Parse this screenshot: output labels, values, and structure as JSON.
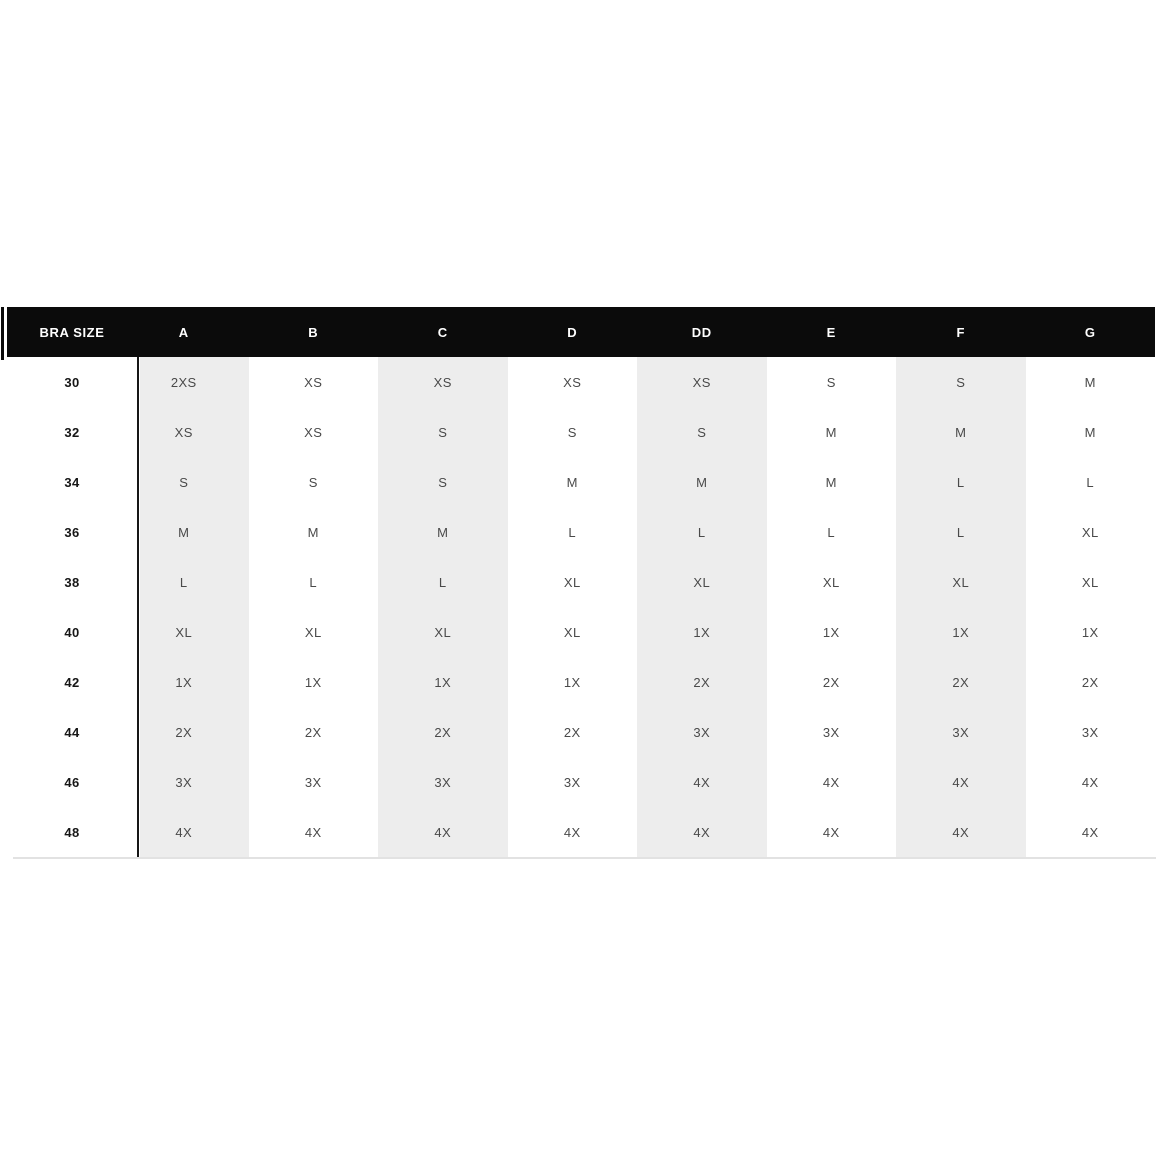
{
  "page": {
    "background": "#ffffff"
  },
  "chart_data": {
    "type": "table",
    "corner_label": "BRA SIZE",
    "columns": [
      "A",
      "B",
      "C",
      "D",
      "DD",
      "E",
      "F",
      "G"
    ],
    "rows": [
      {
        "bra_size": "30",
        "values": [
          "2XS",
          "XS",
          "XS",
          "XS",
          "XS",
          "S",
          "S",
          "M"
        ]
      },
      {
        "bra_size": "32",
        "values": [
          "XS",
          "XS",
          "S",
          "S",
          "S",
          "M",
          "M",
          "M"
        ]
      },
      {
        "bra_size": "34",
        "values": [
          "S",
          "S",
          "S",
          "M",
          "M",
          "M",
          "L",
          "L"
        ]
      },
      {
        "bra_size": "36",
        "values": [
          "M",
          "M",
          "M",
          "L",
          "L",
          "L",
          "L",
          "XL"
        ]
      },
      {
        "bra_size": "38",
        "values": [
          "L",
          "L",
          "L",
          "XL",
          "XL",
          "XL",
          "XL",
          "XL"
        ]
      },
      {
        "bra_size": "40",
        "values": [
          "XL",
          "XL",
          "XL",
          "XL",
          "1X",
          "1X",
          "1X",
          "1X"
        ]
      },
      {
        "bra_size": "42",
        "values": [
          "1X",
          "1X",
          "1X",
          "1X",
          "2X",
          "2X",
          "2X",
          "2X"
        ]
      },
      {
        "bra_size": "44",
        "values": [
          "2X",
          "2X",
          "2X",
          "2X",
          "3X",
          "3X",
          "3X",
          "3X"
        ]
      },
      {
        "bra_size": "46",
        "values": [
          "3X",
          "3X",
          "3X",
          "3X",
          "4X",
          "4X",
          "4X",
          "4X"
        ]
      },
      {
        "bra_size": "48",
        "values": [
          "4X",
          "4X",
          "4X",
          "4X",
          "4X",
          "4X",
          "4X",
          "4X"
        ]
      }
    ],
    "striped_column_indices": [
      0,
      2,
      4,
      6
    ],
    "layout": {
      "legend": "none",
      "grid": "column-stripes"
    }
  },
  "colors": {
    "header_bg": "#0b0b0b",
    "header_text": "#ffffff",
    "stripe": "#ededed",
    "value_text": "#4a4a4a",
    "band_text": "#161616",
    "divider": "#161616",
    "bottom_rule": "#e2e2e2"
  }
}
